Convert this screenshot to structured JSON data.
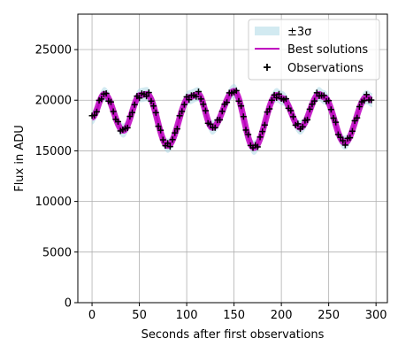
{
  "chart_data": {
    "type": "line",
    "title": "",
    "xlabel": "Seconds after first observations",
    "ylabel": "Flux in ADU",
    "xlim": [
      -15,
      312
    ],
    "ylim": [
      0,
      28500
    ],
    "xticks": [
      0,
      50,
      100,
      150,
      200,
      250,
      300
    ],
    "yticks": [
      0,
      5000,
      10000,
      15000,
      20000,
      25000
    ],
    "grid": true,
    "legend": {
      "placement": "top-right",
      "entries": [
        "±3σ",
        "Best solutions",
        "Observations"
      ]
    },
    "series": [
      {
        "name": "Best solutions",
        "kind": "line",
        "color": "#c000c0",
        "x": [
          0,
          13,
          33,
          51,
          58,
          80,
          103,
          112,
          127,
          150,
          171,
          195,
          201,
          220,
          240,
          245,
          267,
          290,
          296
        ],
        "y": [
          18300,
          20600,
          17000,
          20500,
          20600,
          15500,
          20300,
          20600,
          17300,
          20900,
          15300,
          20500,
          20200,
          17300,
          20600,
          20300,
          15800,
          20300,
          20000
        ]
      },
      {
        "name": "±3σ",
        "kind": "band",
        "color": "#add8e6",
        "half_width": 700
      },
      {
        "name": "Observations",
        "kind": "scatter",
        "marker": "+",
        "color": "#000000",
        "x_start": 0,
        "x_end": 297,
        "x_step": 2.5
      }
    ],
    "colors": {
      "band": "#add8e6",
      "line": "#c000c0",
      "markers": "#000000",
      "grid": "#b0b0b0"
    }
  }
}
